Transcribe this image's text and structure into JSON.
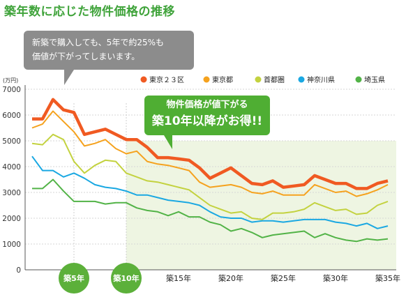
{
  "title": "築年数に応じた物件価格の推移",
  "bubble": {
    "line1": "新築で購入しても、5年で約25%も",
    "line2": "価値が下がってしまいます。"
  },
  "callout": {
    "line1": "物件価格が値下がる",
    "line2": "築10年以降がお得!!"
  },
  "colors": {
    "title": "#3fa33a",
    "bubble": "#8c8c8c",
    "callout": "#4fae33",
    "highlight": "#eef5e2",
    "badge": "#5cb03a"
  },
  "chart_data": {
    "type": "line",
    "ylabel": "(万円)",
    "ylim": [
      0,
      7000
    ],
    "yticks": [
      0,
      1000,
      2000,
      3000,
      4000,
      5000,
      6000,
      7000
    ],
    "xlim": [
      1,
      35
    ],
    "x": [
      1,
      2,
      3,
      4,
      5,
      6,
      7,
      8,
      9,
      10,
      11,
      12,
      13,
      14,
      15,
      16,
      17,
      18,
      19,
      20,
      21,
      22,
      23,
      24,
      25,
      26,
      27,
      28,
      29,
      30,
      31,
      32,
      33,
      34,
      35
    ],
    "xtick_labels": [
      {
        "x": 5,
        "label": "築5年",
        "badge": true
      },
      {
        "x": 10,
        "label": "築10年",
        "badge": true
      },
      {
        "x": 15,
        "label": "築15年",
        "badge": false
      },
      {
        "x": 20,
        "label": "築20年",
        "badge": false
      },
      {
        "x": 25,
        "label": "築25年",
        "badge": false
      },
      {
        "x": 30,
        "label": "築30年",
        "badge": false
      },
      {
        "x": 35,
        "label": "築35年",
        "badge": false
      }
    ],
    "highlight_range": {
      "x": [
        10,
        35
      ],
      "y": [
        0,
        5000
      ]
    },
    "legend_position": "top-right",
    "series": [
      {
        "name": "東京２３区",
        "color": "#f05a22",
        "values": [
          5850,
          5850,
          6600,
          6200,
          6100,
          5250,
          5350,
          5450,
          5250,
          5050,
          5050,
          4750,
          4350,
          4350,
          4300,
          4250,
          3950,
          3550,
          3750,
          3950,
          3650,
          3350,
          3300,
          3450,
          3200,
          3250,
          3300,
          3650,
          3500,
          3350,
          3350,
          3150,
          3150,
          3350,
          3450
        ]
      },
      {
        "name": "東京都",
        "color": "#f5a21e",
        "values": [
          5500,
          5650,
          6150,
          5750,
          5350,
          4800,
          4900,
          5050,
          4700,
          4500,
          4600,
          4200,
          4100,
          4050,
          3950,
          3850,
          3400,
          3200,
          3250,
          3300,
          3200,
          3000,
          2950,
          3050,
          2900,
          2900,
          2900,
          3300,
          3150,
          3000,
          3050,
          2850,
          2950,
          3100,
          3300
        ]
      },
      {
        "name": "首都圏",
        "color": "#c3d23f",
        "values": [
          4900,
          4850,
          5250,
          5050,
          4200,
          3750,
          4050,
          4250,
          4200,
          3750,
          3600,
          3450,
          3400,
          3300,
          3200,
          3100,
          2800,
          2500,
          2350,
          2200,
          2250,
          2000,
          1950,
          2200,
          2200,
          2250,
          2350,
          2600,
          2450,
          2300,
          2350,
          2150,
          2200,
          2500,
          2650
        ]
      },
      {
        "name": "神奈川県",
        "color": "#1aa8e2",
        "values": [
          4400,
          3850,
          3850,
          3600,
          3750,
          3550,
          3300,
          3200,
          3150,
          3050,
          2900,
          2900,
          2800,
          2700,
          2650,
          2600,
          2500,
          2250,
          2050,
          2000,
          2000,
          1850,
          1900,
          1900,
          1850,
          1900,
          1950,
          1950,
          1950,
          1850,
          1800,
          1700,
          1800,
          1600,
          1700
        ]
      },
      {
        "name": "埼玉県",
        "color": "#52b347",
        "values": [
          3150,
          3150,
          3500,
          3050,
          2650,
          2650,
          2650,
          2550,
          2600,
          2600,
          2400,
          2300,
          2250,
          2100,
          2250,
          2050,
          2050,
          1850,
          1750,
          1500,
          1600,
          1450,
          1250,
          1350,
          1400,
          1450,
          1500,
          1250,
          1400,
          1250,
          1150,
          1100,
          1200,
          1150,
          1200
        ]
      }
    ]
  }
}
